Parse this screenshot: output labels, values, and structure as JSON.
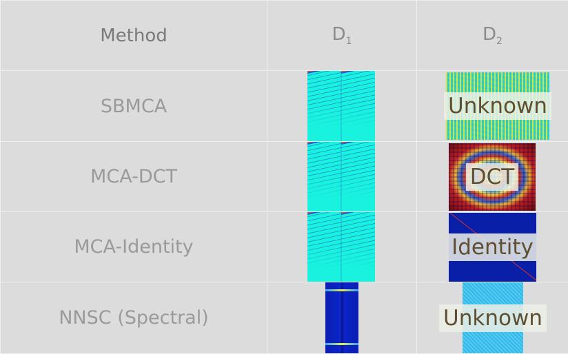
{
  "header": {
    "method": "Method",
    "d1_main": "D",
    "d1_sub": "1",
    "d2_main": "D",
    "d2_sub": "2"
  },
  "rows": [
    {
      "method": "SBMCA",
      "d2_label": "Unknown"
    },
    {
      "method": "MCA-DCT",
      "d2_label": "DCT"
    },
    {
      "method": "MCA-Identity",
      "d2_label": "Identity"
    },
    {
      "method": "NNSC (Spectral)",
      "d2_label": "Unknown"
    }
  ],
  "colors": {
    "cell_background": "#dcdcdc",
    "header_text": "#8a8a8a",
    "method_text": "#9a9a9a",
    "label_text": "#5f4f30"
  }
}
